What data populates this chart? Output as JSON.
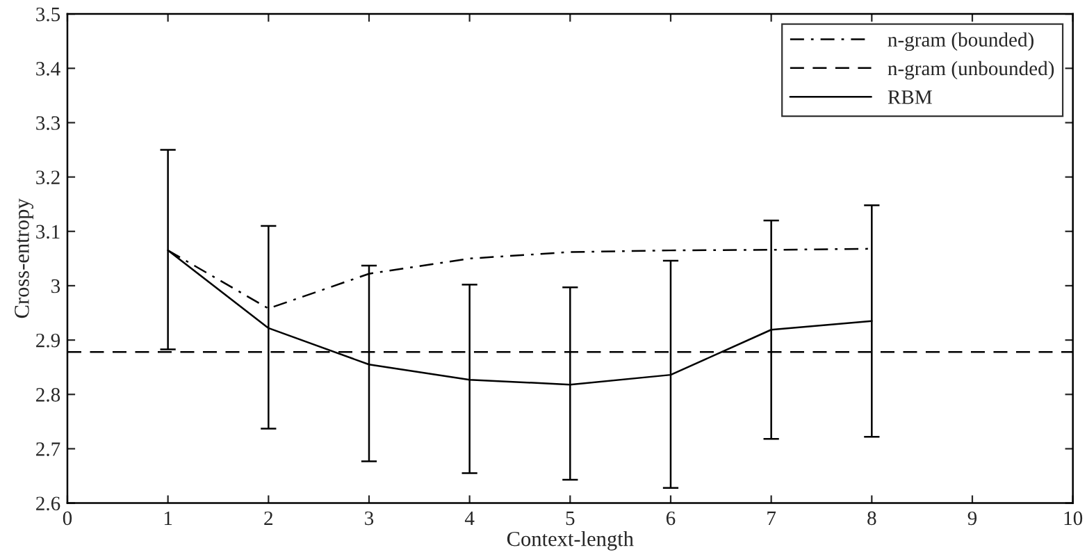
{
  "chart_data": {
    "type": "line",
    "xlabel": "Context-length",
    "ylabel": "Cross-entropy",
    "xlim": [
      0,
      10
    ],
    "xticks": [
      0,
      1,
      2,
      3,
      4,
      5,
      6,
      7,
      8,
      9,
      10
    ],
    "ylim": [
      2.6,
      3.5
    ],
    "yticks": [
      2.6,
      2.7,
      2.8,
      2.9,
      3,
      3.1,
      3.2,
      3.3,
      3.4,
      3.5
    ],
    "grid": false,
    "legend": "top right",
    "marker": "none",
    "series": [
      {
        "name": "n-gram (bounded)",
        "color": "#000000",
        "line_style": "dashdot",
        "x": [
          1,
          2,
          3,
          4,
          5,
          6,
          7,
          8
        ],
        "values": [
          3.065,
          2.958,
          3.022,
          3.05,
          3.062,
          3.065,
          3.066,
          3.068
        ]
      },
      {
        "name": "n-gram (unbounded)",
        "color": "#000000",
        "line_style": "dashed",
        "x": [
          0,
          10
        ],
        "values": [
          2.878,
          2.878
        ]
      },
      {
        "name": "RBM",
        "color": "#000000",
        "line_style": "solid",
        "x": [
          1,
          2,
          3,
          4,
          5,
          6,
          7,
          8
        ],
        "values": [
          3.065,
          2.922,
          2.855,
          2.827,
          2.818,
          2.836,
          2.919,
          2.935
        ],
        "errors": [
          [
            2.883,
            3.25
          ],
          [
            2.737,
            3.11
          ],
          [
            2.677,
            3.037
          ],
          [
            2.655,
            3.002
          ],
          [
            2.643,
            2.997
          ],
          [
            2.628,
            3.046
          ],
          [
            2.718,
            3.12
          ],
          [
            2.722,
            3.148
          ]
        ]
      }
    ]
  }
}
